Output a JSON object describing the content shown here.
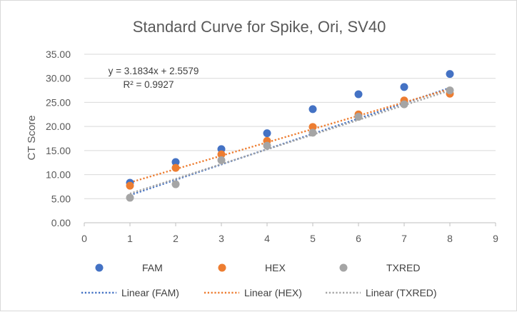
{
  "chart_data": {
    "type": "scatter",
    "title": "Standard Curve for Spike, Ori, SV40",
    "xlabel": "",
    "ylabel": "CT Score",
    "xlim": [
      0,
      9
    ],
    "ylim": [
      0,
      35
    ],
    "x_ticks": [
      "0",
      "1",
      "2",
      "3",
      "4",
      "5",
      "6",
      "7",
      "8",
      "9"
    ],
    "y_ticks": [
      "0.00",
      "5.00",
      "10.00",
      "15.00",
      "20.00",
      "25.00",
      "30.00",
      "35.00"
    ],
    "grid": "horizontal",
    "legend_position": "bottom",
    "series": [
      {
        "name": "FAM",
        "color": "#4472C4",
        "x": [
          1,
          2,
          3,
          4,
          5,
          6,
          7,
          8
        ],
        "y": [
          8.3,
          12.6,
          15.3,
          18.6,
          23.6,
          26.7,
          28.2,
          30.9
        ]
      },
      {
        "name": "HEX",
        "color": "#ED7D31",
        "x": [
          1,
          2,
          3,
          4,
          5,
          6,
          7,
          8
        ],
        "y": [
          7.7,
          11.4,
          14.2,
          17.0,
          19.9,
          22.5,
          25.4,
          26.8
        ]
      },
      {
        "name": "TXRED",
        "color": "#A5A5A5",
        "x": [
          1,
          2,
          3,
          4,
          5,
          6,
          7,
          8
        ],
        "y": [
          5.2,
          8.0,
          13.0,
          16.0,
          18.7,
          22.0,
          24.6,
          27.5
        ]
      }
    ],
    "trendlines": [
      {
        "name": "Linear (FAM)",
        "series": "FAM",
        "color": "#4472C4",
        "slope": 3.1834,
        "intercept": 2.5579
      },
      {
        "name": "Linear (HEX)",
        "series": "HEX",
        "color": "#ED7D31",
        "slope": 2.773,
        "intercept": 5.6
      },
      {
        "name": "Linear (TXRED)",
        "series": "TXRED",
        "color": "#A5A5A5",
        "slope": 3.06,
        "intercept": 3.0
      }
    ],
    "annotations": [
      {
        "text": "y = 3.1834x + 2.5579"
      },
      {
        "text": "R² = 0.9927"
      }
    ]
  }
}
